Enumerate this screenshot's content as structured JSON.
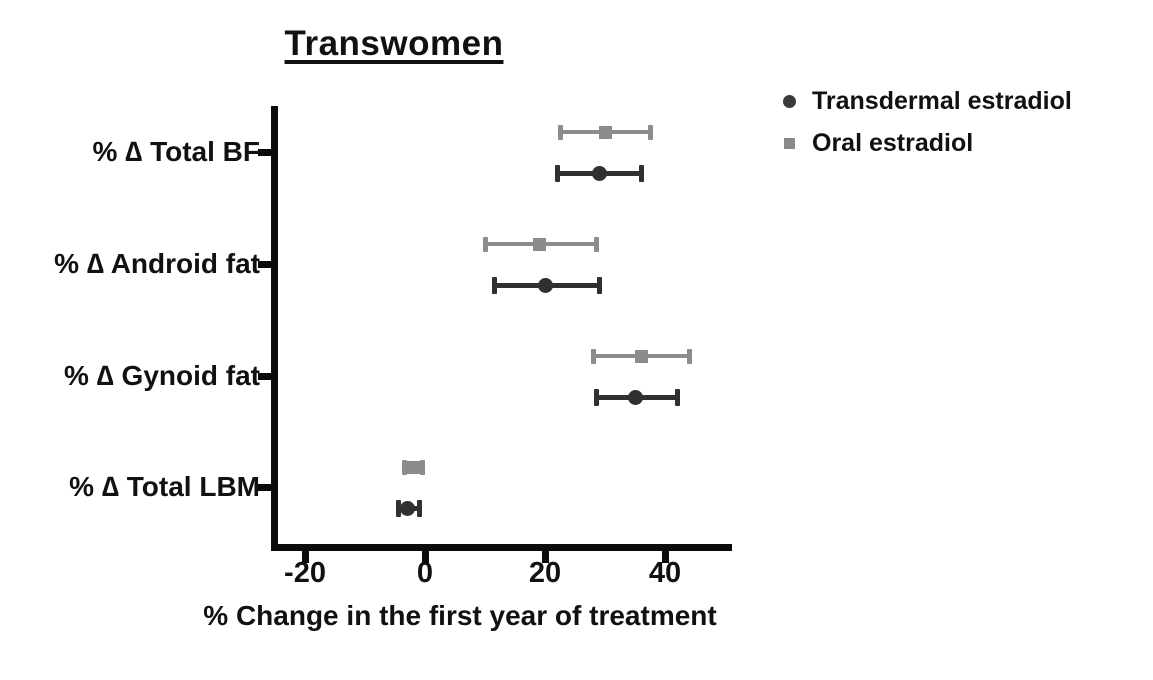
{
  "title": "Transwomen",
  "legend": {
    "items": [
      {
        "label": "Transdermal estradiol",
        "marker": "circle-icon",
        "color": "#3a3a3a"
      },
      {
        "label": "Oral estradiol",
        "marker": "square-icon",
        "color": "#8a8a8a"
      }
    ]
  },
  "chart_data": {
    "type": "scatter",
    "subtype": "horizontal-forest-plot-with-error-bars",
    "title": "Transwomen",
    "xlabel": "% Change in the first year of treatment",
    "ylabel": "",
    "xlim": [
      -25,
      51
    ],
    "x_ticks": [
      -20,
      0,
      20,
      40
    ],
    "grid": false,
    "legend_position": "top-right",
    "categories": [
      "% ∆ Total BF",
      "% ∆ Android fat",
      "% ∆ Gynoid fat",
      "% ∆ Total LBM"
    ],
    "series": [
      {
        "name": "Oral estradiol",
        "marker": "square",
        "color": "#8c8c8c",
        "values": [
          30,
          19,
          36,
          -2
        ],
        "ci_low": [
          22.5,
          10,
          28,
          -3.5
        ],
        "ci_high": [
          37.5,
          28.5,
          44,
          -0.5
        ]
      },
      {
        "name": "Transdermal estradiol",
        "marker": "circle",
        "color": "#303030",
        "values": [
          29,
          20,
          35,
          -3
        ],
        "ci_low": [
          22,
          11.5,
          28.5,
          -4.5
        ],
        "ci_high": [
          36,
          29,
          42,
          -1
        ]
      }
    ]
  }
}
